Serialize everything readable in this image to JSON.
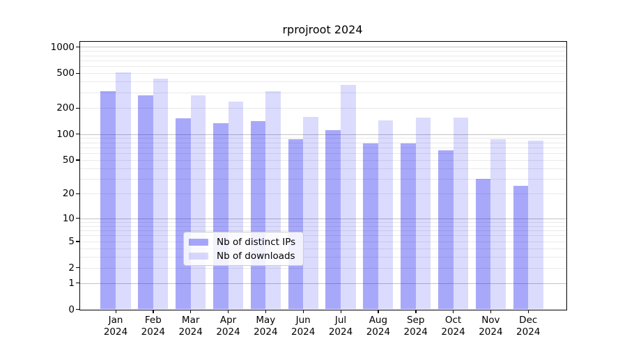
{
  "title": "rprojroot 2024",
  "legend": {
    "items": [
      {
        "label": "Nb of distinct IPs"
      },
      {
        "label": "Nb of downloads"
      }
    ]
  },
  "colors": {
    "bar_base": "#0505f0",
    "bar_distinct_alpha": 0.35,
    "bar_downloads_alpha": 0.145,
    "grid_major": "#c3c3c3",
    "grid_minor": "#e9e9e9",
    "axis": "#000000",
    "background": "#ffffff"
  },
  "chart_data": {
    "type": "bar",
    "title": "rprojroot 2024",
    "categories": [
      "Jan 2024",
      "Feb 2024",
      "Mar 2024",
      "Apr 2024",
      "May 2024",
      "Jun 2024",
      "Jul 2024",
      "Aug 2024",
      "Sep 2024",
      "Oct 2024",
      "Nov 2024",
      "Dec 2024"
    ],
    "series": [
      {
        "name": "Nb of distinct IPs",
        "values": [
          312,
          278,
          152,
          134,
          142,
          87,
          111,
          78,
          78,
          65,
          30,
          25
        ]
      },
      {
        "name": "Nb of downloads",
        "values": [
          515,
          436,
          280,
          235,
          314,
          157,
          370,
          143,
          154,
          155,
          87,
          84
        ]
      }
    ],
    "xlabel": "",
    "ylabel": "",
    "y_scale": "log10(1+x)",
    "y_ticks": [
      0,
      1,
      2,
      5,
      10,
      20,
      50,
      100,
      200,
      500,
      1000
    ],
    "ylim": [
      0,
      1075
    ],
    "grid": "both",
    "legend_position": "lower center"
  }
}
